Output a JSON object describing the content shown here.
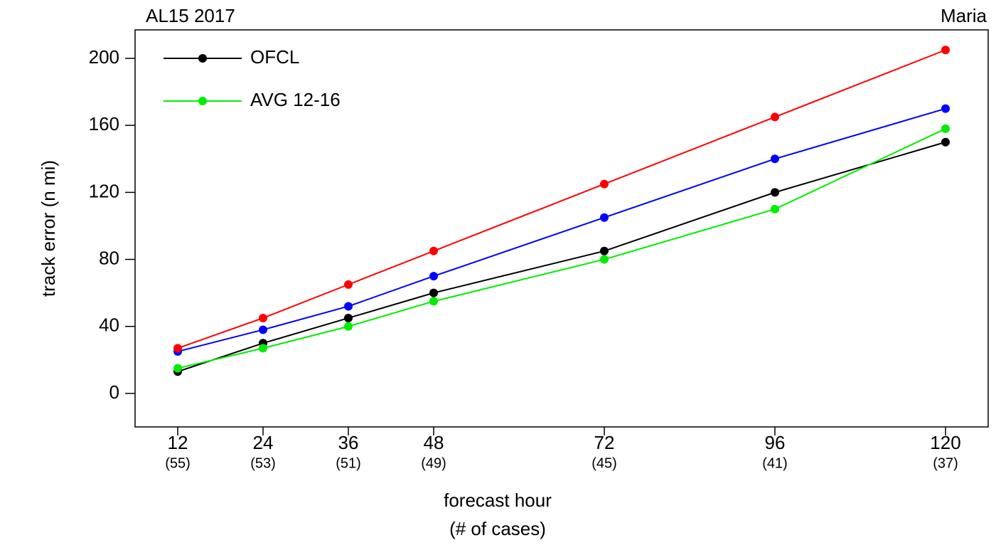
{
  "chart_data": {
    "type": "line",
    "title": "AL15 2017",
    "subtitle": "Maria",
    "x_label": "forecast hour",
    "x_sublabel": "(# of cases)",
    "y_label": "track error (n mi)",
    "x": [
      12,
      24,
      36,
      48,
      72,
      96,
      120
    ],
    "cases": [
      "(55)",
      "(53)",
      "(51)",
      "(49)",
      "(45)",
      "(41)",
      "(37)"
    ],
    "series": [
      {
        "name": "OFCL",
        "color": "#000000",
        "values": [
          13,
          30,
          45,
          60,
          85,
          120,
          150
        ]
      },
      {
        "name": "AVG 12-16",
        "color": "#00ee00",
        "values": [
          15,
          27,
          40,
          55,
          80,
          110,
          158
        ]
      },
      {
        "color": "#0000ff",
        "values": [
          25,
          38,
          52,
          70,
          105,
          140,
          170
        ]
      },
      {
        "color": "#ff0000",
        "values": [
          27,
          45,
          65,
          85,
          125,
          165,
          205
        ]
      }
    ],
    "xlim": [
      6,
      126
    ],
    "ylim": [
      -20,
      217
    ],
    "yticks": [
      0,
      40,
      80,
      120,
      160,
      200
    ],
    "legend": "top-left"
  }
}
